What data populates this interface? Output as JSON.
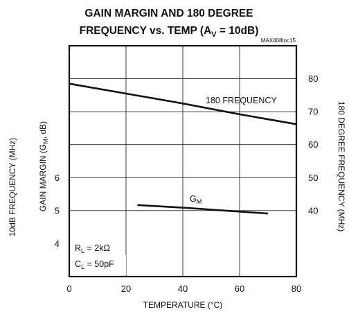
{
  "chart_data": {
    "type": "line",
    "title_line1": "GAIN MARGIN AND 180 DEGREE",
    "title_line2_prefix": "FREQUENCY vs. TEMP (A",
    "title_line2_sub": "V",
    "title_line2_suffix": " = 10dB)",
    "watermark": "MAX408toc15",
    "xlabel": "TEMPERATURE (°C)",
    "xlim": [
      0,
      80
    ],
    "x_ticks": [
      "0",
      "20",
      "40",
      "60",
      "80"
    ],
    "left_outer_label": "10dB FREQUENCY (MHz)",
    "left_inner_label_prefix": "GAIN MARGIN (G",
    "left_inner_label_sub": "M",
    "left_inner_label_suffix": ", dB)",
    "left_ylim": [
      3,
      10
    ],
    "left_ticks": [
      "4",
      "5",
      "6"
    ],
    "right_ylabel": "180 DEGREE FREQUENCY (MHz)",
    "right_ylim": [
      20,
      90
    ],
    "right_ticks": [
      "40",
      "50",
      "60",
      "70",
      "80"
    ],
    "grid": true,
    "series": [
      {
        "name": "180 FREQUENCY",
        "axis": "right",
        "color": "#111111",
        "x": [
          0,
          20,
          40,
          60,
          80
        ],
        "y": [
          78.5,
          75.5,
          72.5,
          69.2,
          66.2
        ]
      },
      {
        "name": "G",
        "name_sub": "M",
        "axis": "left",
        "color": "#111111",
        "x": [
          24,
          40,
          60,
          70
        ],
        "y": [
          5.17,
          5.09,
          4.97,
          4.91
        ]
      }
    ],
    "conditions": [
      {
        "prefix": "R",
        "sub": "L",
        "suffix": " = 2kΩ"
      },
      {
        "prefix": "C",
        "sub": "L",
        "suffix": " = 50pF"
      }
    ]
  }
}
